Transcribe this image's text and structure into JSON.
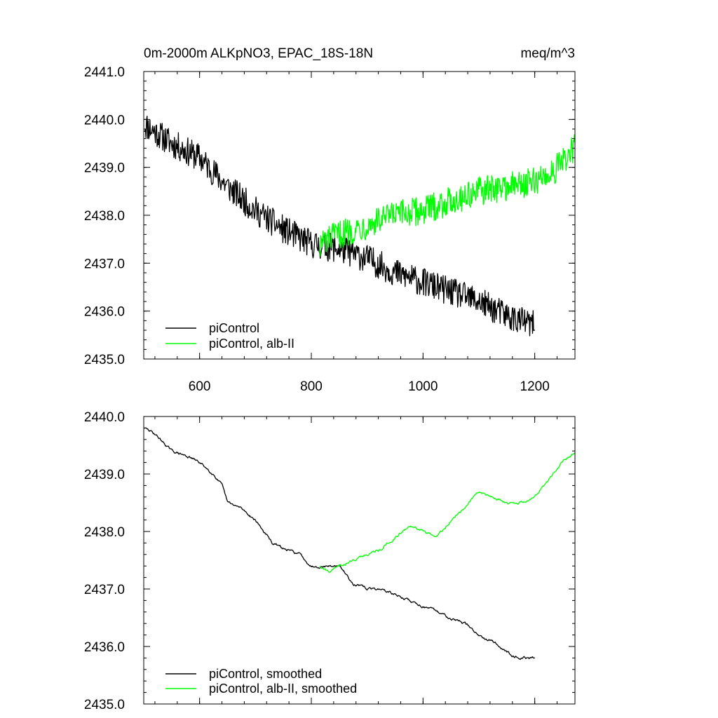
{
  "colors": {
    "control": "#000000",
    "experiment": "#00ff00"
  },
  "chart_data": [
    {
      "type": "line",
      "title": "0m-2000m ALKpNO3, EPAC_18S-18N",
      "units": "meq/m^3",
      "xlabel": "",
      "ylabel": "",
      "xlim": [
        500,
        1272
      ],
      "ylim": [
        2435.0,
        2441.0
      ],
      "xticks": [
        600,
        800,
        1000,
        1200
      ],
      "xtick_labels": [
        "600",
        "800",
        "1000",
        "1200"
      ],
      "yticks": [
        2435,
        2436,
        2437,
        2438,
        2439,
        2440,
        2441
      ],
      "ytick_labels": [
        "2435.0",
        "2436.0",
        "2437.0",
        "2438.0",
        "2439.0",
        "2440.0",
        "2441.0"
      ],
      "legend_position": "lower-left",
      "series": [
        {
          "name": "piControl",
          "color": "#000000",
          "x": [
            501,
            550,
            600,
            650,
            700,
            750,
            800,
            850,
            900,
            950,
            1000,
            1050,
            1100,
            1150,
            1200
          ],
          "values": [
            2439.9,
            2439.5,
            2439.2,
            2438.6,
            2438.1,
            2437.7,
            2437.4,
            2437.3,
            2437.1,
            2436.8,
            2436.6,
            2436.4,
            2436.2,
            2435.9,
            2435.7
          ]
        },
        {
          "name": "piControl, alb-II",
          "color": "#00ff00",
          "x": [
            815,
            850,
            900,
            950,
            1000,
            1050,
            1100,
            1150,
            1200,
            1230,
            1250,
            1272
          ],
          "values": [
            2437.4,
            2437.6,
            2437.8,
            2438.0,
            2438.1,
            2438.3,
            2438.5,
            2438.6,
            2438.7,
            2438.9,
            2439.1,
            2439.4
          ]
        }
      ]
    },
    {
      "type": "line",
      "title": "",
      "xlabel": "",
      "ylabel": "",
      "xlim": [
        500,
        1272
      ],
      "ylim": [
        2435.0,
        2440.0
      ],
      "xticks": [
        600,
        800,
        1000,
        1200
      ],
      "xtick_labels": [],
      "yticks": [
        2435,
        2436,
        2437,
        2438,
        2439,
        2440
      ],
      "ytick_labels": [
        "2435.0",
        "2436.0",
        "2437.0",
        "2438.0",
        "2439.0",
        "2440.0"
      ],
      "legend_position": "lower-left",
      "series": [
        {
          "name": "piControl, smoothed",
          "color": "#000000",
          "x": [
            501,
            520,
            550,
            580,
            600,
            625,
            640,
            650,
            675,
            700,
            730,
            750,
            780,
            800,
            820,
            850,
            875,
            900,
            925,
            950,
            975,
            1000,
            1025,
            1050,
            1075,
            1100,
            1125,
            1150,
            1175,
            1200
          ],
          "values": [
            2439.8,
            2439.7,
            2439.4,
            2439.3,
            2439.2,
            2439.0,
            2438.8,
            2438.5,
            2438.4,
            2438.2,
            2437.8,
            2437.7,
            2437.6,
            2437.4,
            2437.4,
            2437.4,
            2437.1,
            2437.0,
            2437.0,
            2436.9,
            2436.8,
            2436.7,
            2436.6,
            2436.5,
            2436.4,
            2436.2,
            2436.1,
            2435.9,
            2435.8,
            2435.8
          ]
        },
        {
          "name": "piControl, alb-II, smoothed",
          "color": "#00ff00",
          "x": [
            815,
            830,
            850,
            875,
            900,
            925,
            950,
            975,
            1000,
            1025,
            1050,
            1075,
            1100,
            1125,
            1150,
            1175,
            1200,
            1225,
            1250,
            1272
          ],
          "values": [
            2437.4,
            2437.3,
            2437.4,
            2437.5,
            2437.6,
            2437.7,
            2437.9,
            2438.1,
            2438.0,
            2437.9,
            2438.2,
            2438.4,
            2438.7,
            2438.6,
            2438.5,
            2438.5,
            2438.6,
            2438.9,
            2439.2,
            2439.4
          ]
        }
      ]
    }
  ]
}
